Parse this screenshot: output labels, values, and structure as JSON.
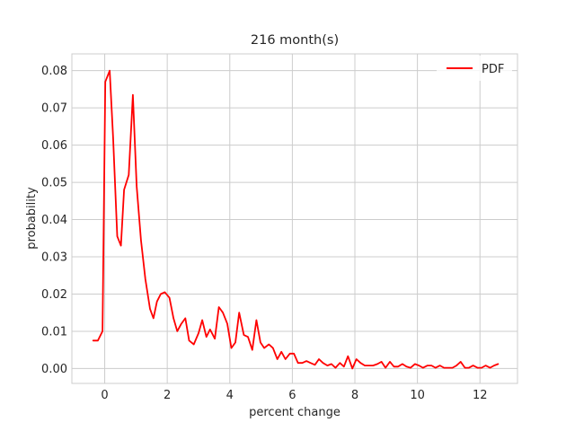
{
  "chart_data": {
    "type": "line",
    "title": "216 month(s)",
    "xlabel": "percent change",
    "ylabel": "probability",
    "xlim": [
      -1.05,
      13.2
    ],
    "ylim": [
      -0.004,
      0.0845
    ],
    "xticks": [
      0,
      2,
      4,
      6,
      8,
      10,
      12
    ],
    "yticks": [
      0.0,
      0.01,
      0.02,
      0.03,
      0.04,
      0.05,
      0.06,
      0.07,
      0.08
    ],
    "ytick_labels": [
      "0.00",
      "0.01",
      "0.02",
      "0.03",
      "0.04",
      "0.05",
      "0.06",
      "0.07",
      "0.08"
    ],
    "grid": true,
    "legend_position": "top-right",
    "series": [
      {
        "name": "PDF",
        "color": "#ff0000",
        "x": [
          -0.37,
          -0.22,
          -0.07,
          0.02,
          0.16,
          0.27,
          0.4,
          0.52,
          0.62,
          0.77,
          0.9,
          1.02,
          1.16,
          1.3,
          1.45,
          1.56,
          1.67,
          1.79,
          1.92,
          2.07,
          2.2,
          2.32,
          2.45,
          2.58,
          2.7,
          2.85,
          3.0,
          3.12,
          3.25,
          3.37,
          3.52,
          3.65,
          3.78,
          3.92,
          4.05,
          4.18,
          4.3,
          4.45,
          4.58,
          4.72,
          4.85,
          4.98,
          5.1,
          5.25,
          5.38,
          5.52,
          5.65,
          5.78,
          5.92,
          6.05,
          6.18,
          6.32,
          6.45,
          6.58,
          6.72,
          6.85,
          6.98,
          7.12,
          7.25,
          7.38,
          7.52,
          7.65,
          7.78,
          7.92,
          8.05,
          8.18,
          8.32,
          8.45,
          8.58,
          8.72,
          8.85,
          8.98,
          9.12,
          9.25,
          9.38,
          9.52,
          9.65,
          9.78,
          9.92,
          10.05,
          10.18,
          10.32,
          10.45,
          10.58,
          10.72,
          10.85,
          10.98,
          11.12,
          11.25,
          11.38,
          11.52,
          11.65,
          11.78,
          11.92,
          12.05,
          12.18,
          12.32,
          12.45,
          12.58
        ],
        "y": [
          0.0075,
          0.0075,
          0.01,
          0.077,
          0.08,
          0.062,
          0.0355,
          0.033,
          0.048,
          0.052,
          0.0735,
          0.049,
          0.0345,
          0.024,
          0.016,
          0.0135,
          0.018,
          0.02,
          0.0205,
          0.019,
          0.0135,
          0.01,
          0.012,
          0.0135,
          0.0075,
          0.0065,
          0.0095,
          0.013,
          0.0085,
          0.0105,
          0.008,
          0.0165,
          0.015,
          0.012,
          0.0055,
          0.007,
          0.015,
          0.009,
          0.0085,
          0.005,
          0.013,
          0.007,
          0.0055,
          0.0065,
          0.0055,
          0.0025,
          0.0045,
          0.0025,
          0.004,
          0.004,
          0.0015,
          0.0015,
          0.002,
          0.0015,
          0.001,
          0.0025,
          0.0015,
          0.0008,
          0.0012,
          0.0002,
          0.0015,
          0.0005,
          0.0033,
          0.0,
          0.0025,
          0.0015,
          0.0008,
          0.0008,
          0.0008,
          0.0012,
          0.0018,
          0.0002,
          0.0018,
          0.0005,
          0.0005,
          0.0012,
          0.0005,
          0.0002,
          0.0012,
          0.0008,
          0.0002,
          0.0008,
          0.0008,
          0.0002,
          0.0008,
          0.0002,
          0.0002,
          0.0002,
          0.0008,
          0.0018,
          0.0002,
          0.0002,
          0.0008,
          0.0002,
          0.0002,
          0.0008,
          0.0002,
          0.0008,
          0.0012
        ]
      }
    ]
  }
}
